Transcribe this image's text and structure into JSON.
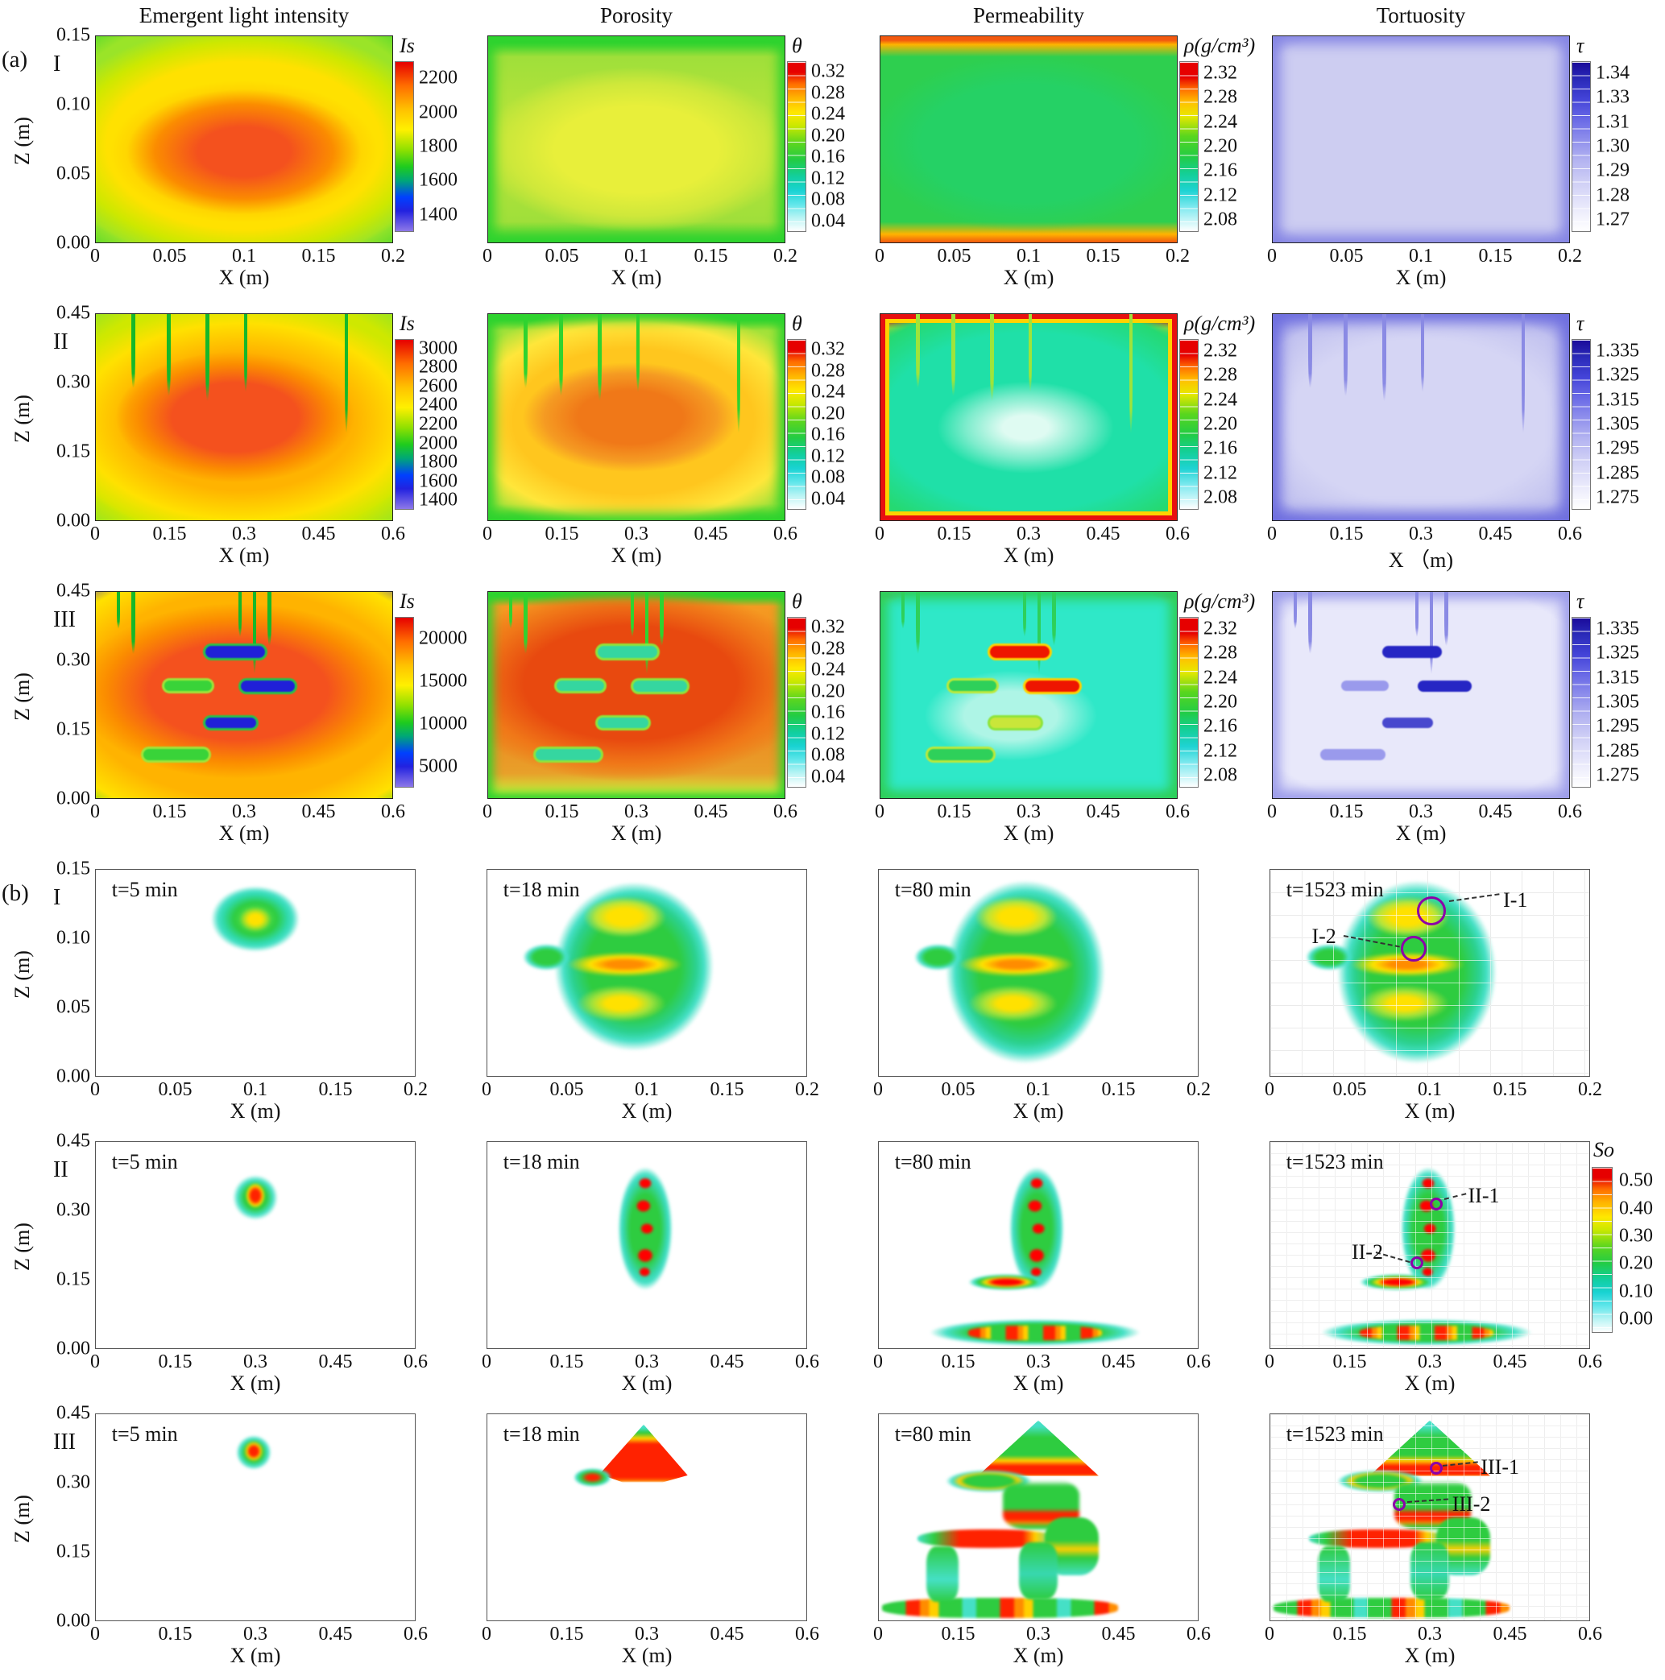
{
  "figure": {
    "part_a_label": "(a)",
    "part_b_label": "(b)",
    "column_headers": [
      "Emergent light intensity",
      "Porosity",
      "Permeability",
      "Tortuosity"
    ]
  },
  "chart_data": {
    "type": "heatmap",
    "part_a": {
      "rows": [
        {
          "sample": "I",
          "xlabel": "X (m)",
          "zlabel": "Z (m)",
          "xlim": [
            0,
            0.2
          ],
          "zlim": [
            0,
            0.15
          ],
          "xticks": [
            "0",
            "0.05",
            "0.1",
            "0.15",
            "0.2"
          ],
          "zticks": [
            "0.15",
            "0.10",
            "0.05",
            "0.00"
          ],
          "panels": [
            {
              "measure": "Emergent light intensity",
              "field": "int",
              "colorbar": {
                "title": "Is",
                "ticks": [
                  "2200",
                  "2000",
                  "1800",
                  "1600",
                  "1400"
                ]
              }
            },
            {
              "measure": "Porosity",
              "field": "por",
              "colorbar": {
                "title": "θ",
                "ticks": [
                  "0.32",
                  "0.28",
                  "0.24",
                  "0.20",
                  "0.16",
                  "0.12",
                  "0.08",
                  "0.04"
                ]
              }
            },
            {
              "measure": "Permeability",
              "field": "den",
              "colorbar": {
                "title": "ρ(g/cm³)",
                "ticks": [
                  "2.32",
                  "2.28",
                  "2.24",
                  "2.20",
                  "2.16",
                  "2.12",
                  "2.08"
                ]
              }
            },
            {
              "measure": "Tortuosity",
              "field": "tor",
              "colorbar": {
                "title": "τ",
                "ticks": [
                  "1.34",
                  "1.33",
                  "1.31",
                  "1.30",
                  "1.29",
                  "1.28",
                  "1.27"
                ]
              }
            }
          ]
        },
        {
          "sample": "II",
          "xlabel": "X (m)",
          "zlabel": "Z (m)",
          "xlim": [
            0,
            0.6
          ],
          "zlim": [
            0,
            0.45
          ],
          "xticks": [
            "0",
            "0.15",
            "0.3",
            "0.45",
            "0.6"
          ],
          "zticks": [
            "0.45",
            "0.30",
            "0.15",
            "0.00"
          ],
          "panels": [
            {
              "measure": "Emergent light intensity",
              "field": "int",
              "colorbar": {
                "title": "Is",
                "ticks": [
                  "3000",
                  "2800",
                  "2600",
                  "2400",
                  "2200",
                  "2000",
                  "1800",
                  "1600",
                  "1400"
                ]
              }
            },
            {
              "measure": "Porosity",
              "field": "por",
              "colorbar": {
                "title": "θ",
                "ticks": [
                  "0.32",
                  "0.28",
                  "0.24",
                  "0.20",
                  "0.16",
                  "0.12",
                  "0.08",
                  "0.04"
                ]
              }
            },
            {
              "measure": "Permeability",
              "field": "den",
              "colorbar": {
                "title": "ρ(g/cm³)",
                "ticks": [
                  "2.32",
                  "2.28",
                  "2.24",
                  "2.20",
                  "2.16",
                  "2.12",
                  "2.08"
                ]
              }
            },
            {
              "measure": "Tortuosity",
              "field": "tor",
              "xlabel": "X （m)",
              "colorbar": {
                "title": "τ",
                "ticks": [
                  "1.335",
                  "1.325",
                  "1.315",
                  "1.305",
                  "1.295",
                  "1.285",
                  "1.275"
                ]
              }
            }
          ]
        },
        {
          "sample": "III",
          "xlabel": "X (m)",
          "zlabel": "Z (m)",
          "xlim": [
            0,
            0.6
          ],
          "zlim": [
            0,
            0.45
          ],
          "xticks": [
            "0",
            "0.15",
            "0.3",
            "0.45",
            "0.6"
          ],
          "zticks": [
            "0.45",
            "0.30",
            "0.15",
            "0.00"
          ],
          "panels": [
            {
              "measure": "Emergent light intensity",
              "field": "int",
              "colorbar": {
                "title": "Is",
                "ticks": [
                  "20000",
                  "15000",
                  "10000",
                  "5000"
                ]
              }
            },
            {
              "measure": "Porosity",
              "field": "por",
              "colorbar": {
                "title": "θ",
                "ticks": [
                  "0.32",
                  "0.28",
                  "0.24",
                  "0.20",
                  "0.16",
                  "0.12",
                  "0.08",
                  "0.04"
                ]
              }
            },
            {
              "measure": "Permeability",
              "field": "den",
              "colorbar": {
                "title": "ρ(g/cm³)",
                "ticks": [
                  "2.32",
                  "2.28",
                  "2.24",
                  "2.20",
                  "2.16",
                  "2.12",
                  "2.08"
                ]
              }
            },
            {
              "measure": "Tortuosity",
              "field": "tor",
              "colorbar": {
                "title": "τ",
                "ticks": [
                  "1.335",
                  "1.325",
                  "1.315",
                  "1.305",
                  "1.295",
                  "1.285",
                  "1.275"
                ]
              }
            }
          ]
        }
      ]
    },
    "part_b": {
      "colorbar": {
        "title": "So",
        "ticks": [
          "0.50",
          "0.40",
          "0.30",
          "0.20",
          "0.10",
          "0.00"
        ]
      },
      "rows": [
        {
          "sample": "I",
          "xlabel": "X (m)",
          "zlabel": "Z (m)",
          "xlim": [
            0,
            0.2
          ],
          "zlim": [
            0,
            0.15
          ],
          "xticks": [
            "0",
            "0.05",
            "0.1",
            "0.15",
            "0.2"
          ],
          "zticks": [
            "0.15",
            "0.10",
            "0.05",
            "0.00"
          ],
          "panels": [
            {
              "time": "t=5 min"
            },
            {
              "time": "t=18 min"
            },
            {
              "time": "t=80 min"
            },
            {
              "time": "t=1523 min",
              "annotations": [
                {
                  "label": "I-1"
                },
                {
                  "label": "I-2"
                }
              ]
            }
          ]
        },
        {
          "sample": "II",
          "xlabel": "X (m)",
          "zlabel": "Z (m)",
          "xlim": [
            0,
            0.6
          ],
          "zlim": [
            0,
            0.45
          ],
          "xticks": [
            "0",
            "0.15",
            "0.3",
            "0.45",
            "0.6"
          ],
          "zticks": [
            "0.45",
            "0.30",
            "0.15",
            "0.00"
          ],
          "panels": [
            {
              "time": "t=5 min"
            },
            {
              "time": "t=18 min"
            },
            {
              "time": "t=80 min"
            },
            {
              "time": "t=1523 min",
              "has_colorbar": true,
              "annotations": [
                {
                  "label": "II-1"
                },
                {
                  "label": "II-2"
                }
              ]
            }
          ]
        },
        {
          "sample": "III",
          "xlabel": "X (m)",
          "zlabel": "Z (m)",
          "xlim": [
            0,
            0.6
          ],
          "zlim": [
            0,
            0.45
          ],
          "xticks": [
            "0",
            "0.15",
            "0.3",
            "0.45",
            "0.6"
          ],
          "zticks": [
            "0.45",
            "0.30",
            "0.15",
            "0.00"
          ],
          "panels": [
            {
              "time": "t=5 min"
            },
            {
              "time": "t=18 min"
            },
            {
              "time": "t=80 min"
            },
            {
              "time": "t=1523 min",
              "annotations": [
                {
                  "label": "III-1"
                },
                {
                  "label": "III-2"
                }
              ]
            }
          ]
        }
      ]
    }
  }
}
